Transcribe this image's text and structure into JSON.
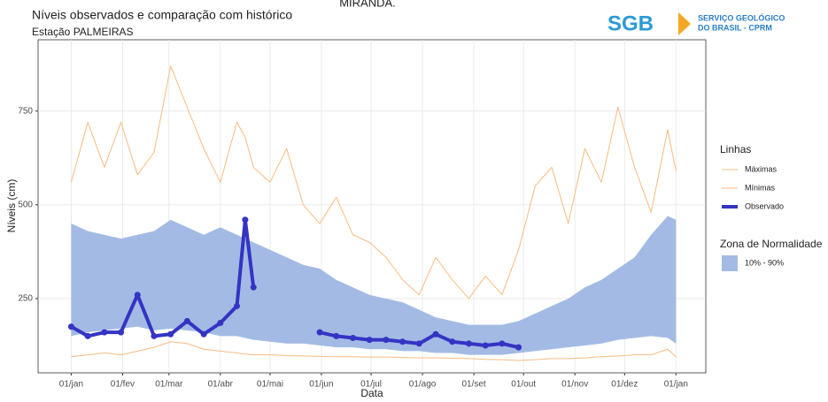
{
  "header": {
    "top_text": "MIRANDA.",
    "logo_mark": "SGB",
    "logo_text": [
      "SERVIÇO GEOLÓGICO",
      "DO BRASIL - CPRM"
    ]
  },
  "chart_data": {
    "type": "line",
    "title": "Níveis observados e comparação com histórico",
    "subtitle": "Estação PALMEIRAS",
    "x_label": "Data",
    "y_label": "Níveis (cm)",
    "legend_title": "Linhas",
    "band_legend_title": "Zona de Normalidade",
    "x": [
      0,
      10,
      20,
      30,
      40,
      50,
      60,
      70,
      80,
      90,
      100,
      105,
      110,
      120,
      130,
      140,
      150,
      160,
      170,
      180,
      190,
      200,
      210,
      220,
      230,
      240,
      250,
      260,
      270,
      280,
      290,
      300,
      310,
      320,
      330,
      340,
      350,
      360,
      365
    ],
    "xlim": [
      -20,
      383
    ],
    "xticks": [
      {
        "value": 0,
        "label": "01/jan"
      },
      {
        "value": 31,
        "label": "01/fev"
      },
      {
        "value": 59,
        "label": "01/mar"
      },
      {
        "value": 90,
        "label": "01/abr"
      },
      {
        "value": 120,
        "label": "01/mai"
      },
      {
        "value": 151,
        "label": "01/jun"
      },
      {
        "value": 181,
        "label": "01/jul"
      },
      {
        "value": 212,
        "label": "01/ago"
      },
      {
        "value": 243,
        "label": "01/set"
      },
      {
        "value": 273,
        "label": "01/out"
      },
      {
        "value": 304,
        "label": "01/nov"
      },
      {
        "value": 334,
        "label": "01/dez"
      },
      {
        "value": 365,
        "label": "01/jan"
      }
    ],
    "ylim": [
      52,
      940
    ],
    "yticks": [
      250,
      500,
      750
    ],
    "grid": true,
    "band": {
      "name": "10% - 90%",
      "color": "#a3bbe4",
      "low": [
        150,
        160,
        165,
        170,
        175,
        165,
        170,
        165,
        160,
        150,
        150,
        145,
        140,
        135,
        130,
        130,
        125,
        120,
        120,
        115,
        115,
        110,
        110,
        105,
        105,
        100,
        100,
        100,
        105,
        110,
        115,
        120,
        125,
        130,
        140,
        145,
        150,
        145,
        130
      ],
      "high": [
        450,
        430,
        420,
        410,
        420,
        430,
        460,
        440,
        420,
        440,
        420,
        410,
        400,
        380,
        360,
        340,
        330,
        300,
        280,
        260,
        250,
        240,
        220,
        200,
        190,
        180,
        180,
        180,
        190,
        210,
        230,
        250,
        280,
        300,
        330,
        360,
        420,
        470,
        460
      ]
    },
    "series": [
      {
        "name": "Máximas",
        "color": "#f8bb82",
        "width": 1,
        "values": [
          560,
          720,
          600,
          720,
          580,
          640,
          870,
          760,
          650,
          560,
          720,
          680,
          600,
          560,
          650,
          500,
          450,
          520,
          420,
          400,
          360,
          300,
          260,
          360,
          300,
          250,
          310,
          260,
          380,
          550,
          600,
          450,
          650,
          560,
          760,
          600,
          480,
          700,
          590
        ]
      },
      {
        "name": "Mínimas",
        "color": "#f8bb82",
        "width": 1,
        "values": [
          95,
          100,
          105,
          100,
          110,
          120,
          135,
          130,
          115,
          110,
          105,
          102,
          100,
          100,
          98,
          97,
          96,
          95,
          95,
          94,
          94,
          93,
          92,
          92,
          91,
          90,
          88,
          87,
          85,
          87,
          90,
          90,
          92,
          95,
          97,
          100,
          100,
          115,
          95
        ]
      },
      {
        "name": "Observado",
        "color": "#3434c4",
        "width": 4,
        "markers": true,
        "values": [
          175,
          150,
          160,
          160,
          260,
          150,
          155,
          190,
          155,
          185,
          230,
          460,
          280,
          null,
          null,
          null,
          160,
          150,
          145,
          140,
          140,
          135,
          130,
          155,
          135,
          130,
          125,
          130,
          120,
          null,
          null,
          null,
          null,
          null,
          null,
          null,
          null,
          null,
          null
        ]
      }
    ]
  }
}
